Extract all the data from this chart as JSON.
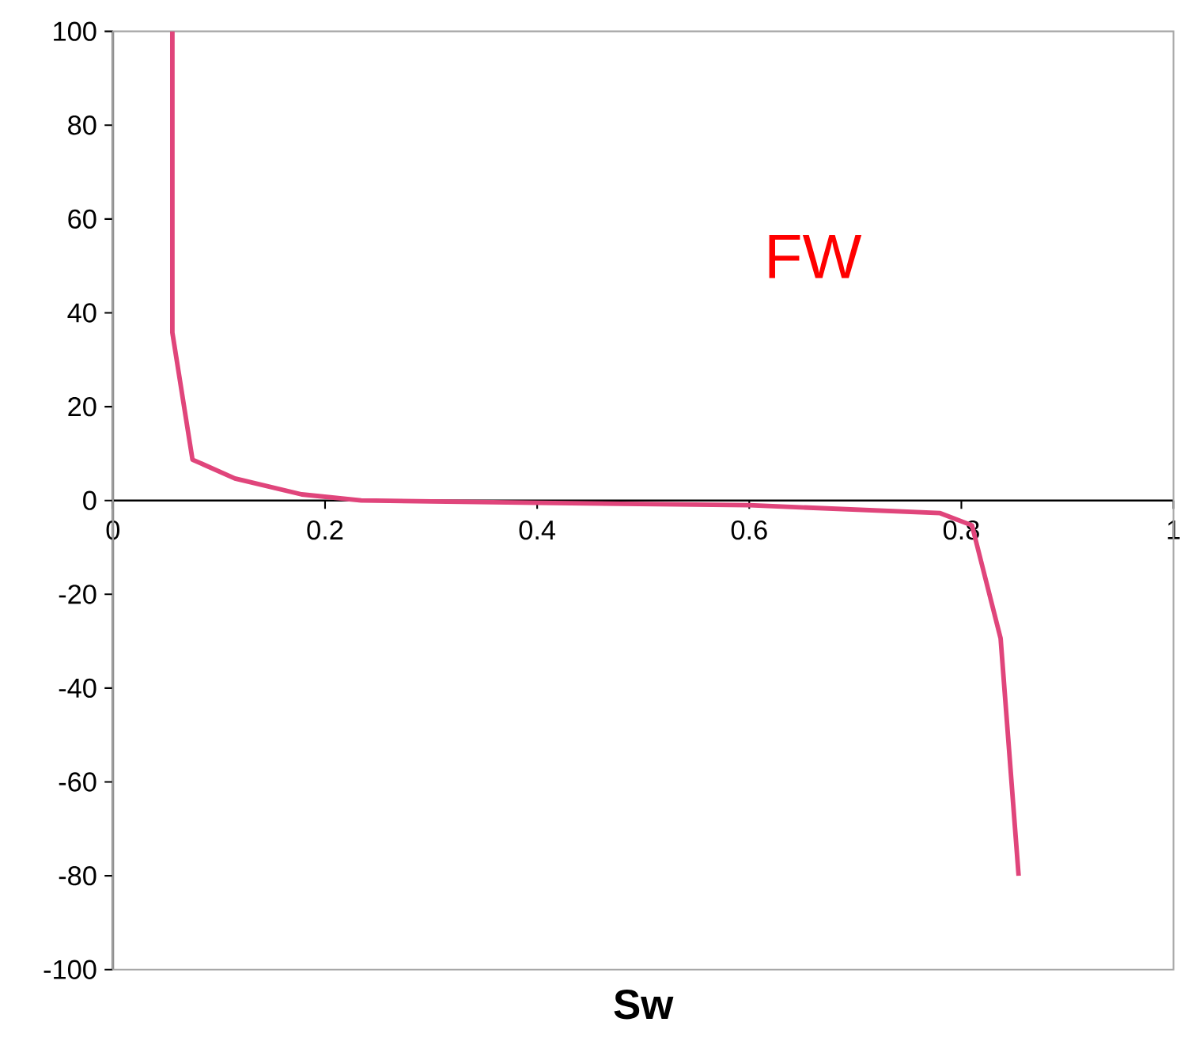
{
  "chart_data": {
    "type": "line",
    "xlabel": "**Sw**",
    "annotations": [
      "FW"
    ],
    "x": [
      0.056,
      0.056,
      0.075,
      0.115,
      0.178,
      0.234,
      0.4,
      0.6,
      0.78,
      0.81,
      0.837,
      0.854
    ],
    "series": [
      {
        "color": "#e0457b",
        "values": [
          100,
          35.8,
          8.7,
          4.7,
          1.3,
          0,
          -0.5,
          -1,
          -2.7,
          -5.3,
          -29.4,
          -80
        ]
      }
    ],
    "xlim": [
      0,
      1
    ],
    "xticks": [
      0,
      0.2,
      0.4,
      0.6,
      0.8,
      1
    ],
    "ylim": [
      -100,
      100
    ],
    "yticks": [
      -100,
      -80,
      -60,
      -40,
      -20,
      0,
      20,
      40,
      60,
      80,
      100
    ],
    "grid": false,
    "marker": "none",
    "line_style": "solid"
  }
}
